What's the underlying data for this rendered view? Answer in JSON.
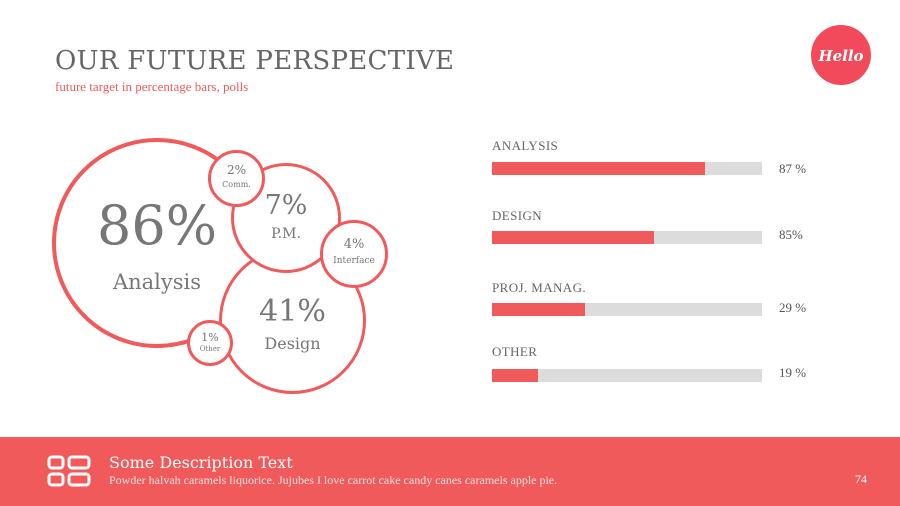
{
  "header": {
    "title": "OUR FUTURE PERSPECTIVE",
    "subtitle": "future target in percentage bars, polls",
    "logo_text": "Hello"
  },
  "bubbles": {
    "analysis": {
      "value": "86%",
      "label": "Analysis"
    },
    "comm": {
      "value": "2%",
      "label": "Comm."
    },
    "pm": {
      "value": "7%",
      "label": "P.M."
    },
    "interface": {
      "value": "4%",
      "label": "Interface"
    },
    "design": {
      "value": "41%",
      "label": "Design"
    },
    "other": {
      "value": "1%",
      "label": "Other"
    }
  },
  "bars": [
    {
      "label": "ANALYSIS",
      "value_text": "87 %",
      "fraction": 0.79
    },
    {
      "label": "DESIGN",
      "value_text": "85%",
      "fraction": 0.6
    },
    {
      "label": "PROJ. MANAG.",
      "value_text": "29 %",
      "fraction": 0.345
    },
    {
      "label": "OTHER",
      "value_text": "19 %",
      "fraction": 0.17
    }
  ],
  "footer": {
    "icon": "list-grid-icon",
    "title": "Some Description Text",
    "description": "Powder halvah caramels liquorice. Jujubes I love carrot cake candy canes caramels apple pie.",
    "page_number": "74"
  },
  "colors": {
    "accent": "#f15a5b",
    "track": "#dcdcdc",
    "text": "#666666"
  }
}
